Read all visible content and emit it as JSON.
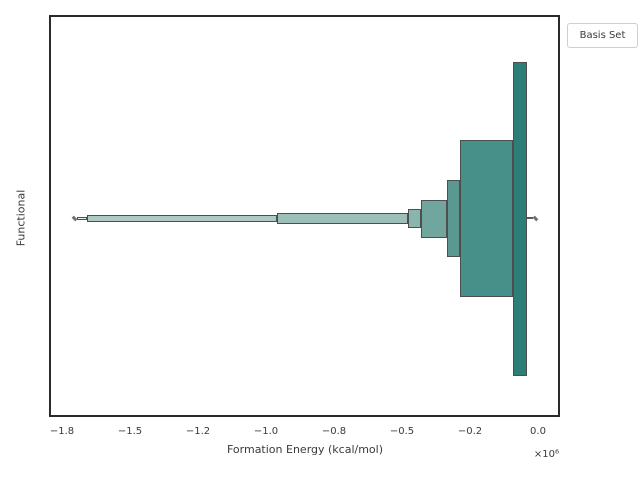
{
  "axes": {
    "xlabel": "Formation Energy (kcal/mol)",
    "ylabel": "Functional",
    "offset_text": "×10⁶",
    "spine_color": "#2b2b2b",
    "tick_color": "#3a3a3a"
  },
  "legend": {
    "title": "Basis Set"
  },
  "chart_data": {
    "type": "boxen",
    "orientation": "horizontal",
    "title": "",
    "xlabel": "Formation Energy (kcal/mol)",
    "ylabel": "Functional",
    "legend_title": "Basis Set",
    "legend_position": "upper right, outside axes",
    "grid": false,
    "categories": [
      ""
    ],
    "x_value_units": "kcal/mol × 10⁶",
    "xlim": [
      -1.79,
      0.075
    ],
    "x_ticks": [
      {
        "value": -1.75,
        "label": "−1.8"
      },
      {
        "value": -1.5,
        "label": "−1.5"
      },
      {
        "value": -1.25,
        "label": "−1.2"
      },
      {
        "value": -1.0,
        "label": "−1.0"
      },
      {
        "value": -0.75,
        "label": "−0.8"
      },
      {
        "value": -0.5,
        "label": "−0.5"
      },
      {
        "value": -0.25,
        "label": "−0.2"
      },
      {
        "value": 0.0,
        "label": "0.0"
      }
    ],
    "boxes": [
      {
        "name": "level-7-outermost",
        "x1": -1.695,
        "x2": -1.657,
        "thickness": 3.5,
        "color": "#e9f1ef"
      },
      {
        "name": "level-6",
        "x1": -1.657,
        "x2": -0.96,
        "thickness": 6.5,
        "color": "#adc9c3"
      },
      {
        "name": "level-5",
        "x1": -0.96,
        "x2": -0.478,
        "thickness": 11,
        "color": "#9cc0b9"
      },
      {
        "name": "level-4",
        "x1": -0.478,
        "x2": -0.43,
        "thickness": 19.5,
        "color": "#8ab5ae"
      },
      {
        "name": "level-3",
        "x1": -0.43,
        "x2": -0.335,
        "thickness": 38,
        "color": "#71a69f"
      },
      {
        "name": "level-2",
        "x1": -0.335,
        "x2": -0.287,
        "thickness": 77.5,
        "color": "#5b9892"
      },
      {
        "name": "level-1",
        "x1": -0.287,
        "x2": -0.092,
        "thickness": 156.5,
        "color": "#47908a"
      },
      {
        "name": "median-box",
        "x1": -0.092,
        "x2": -0.042,
        "thickness": 314,
        "color": "#2d7e79"
      }
    ],
    "tail_line": {
      "x1": -0.042,
      "x2": -0.018
    },
    "outliers": [
      {
        "name": "outlier-left",
        "x": -1.705
      },
      {
        "name": "outlier-right",
        "x": -0.011
      }
    ]
  }
}
